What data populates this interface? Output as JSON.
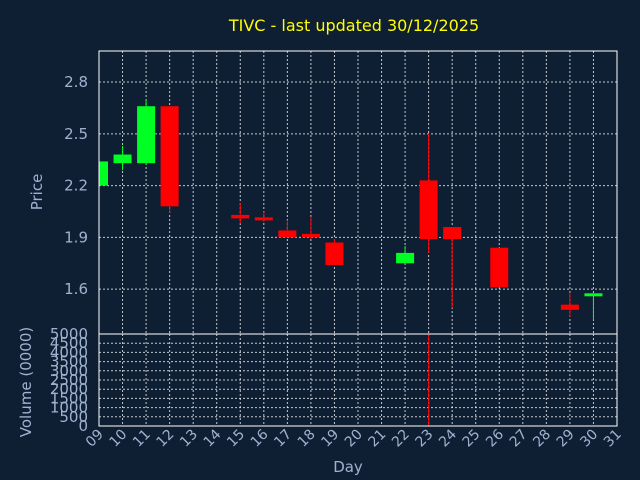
{
  "chart_data": {
    "type": "candlestick",
    "title": "TIVC - last updated 30/12/2025",
    "ylabel": "Price",
    "volume_label": "Volume (0000)",
    "xlabel": "Day",
    "ylim": [
      1.34,
      2.98
    ],
    "volume_ylim": [
      0,
      5000
    ],
    "x_ticks": [
      "09",
      "10",
      "11",
      "12",
      "13",
      "14",
      "15",
      "16",
      "17",
      "18",
      "19",
      "20",
      "21",
      "22",
      "23",
      "24",
      "25",
      "26",
      "27",
      "28",
      "29",
      "30",
      "31"
    ],
    "y_ticks": [
      "1.6",
      "1.9",
      "2.2",
      "2.5",
      "2.8"
    ],
    "volume_ticks": [
      "0",
      "500",
      "1000",
      "1500",
      "2000",
      "2500",
      "3000",
      "3500",
      "4000",
      "4500",
      "5000"
    ],
    "candles": [
      {
        "day": "09",
        "open": 2.2,
        "high": 2.34,
        "low": 2.2,
        "close": 2.34
      },
      {
        "day": "10",
        "open": 2.33,
        "high": 2.43,
        "low": 2.29,
        "close": 2.38
      },
      {
        "day": "11",
        "open": 2.33,
        "high": 2.7,
        "low": 2.32,
        "close": 2.66
      },
      {
        "day": "12",
        "open": 2.66,
        "high": 2.66,
        "low": 2.04,
        "close": 2.08
      },
      {
        "day": "15",
        "open": 2.03,
        "high": 2.1,
        "low": 1.98,
        "close": 2.01
      },
      {
        "day": "16",
        "open": 2.01,
        "high": 2.05,
        "low": 1.99,
        "close": 2.0
      },
      {
        "day": "17",
        "open": 1.94,
        "high": 2.0,
        "low": 1.9,
        "close": 1.9
      },
      {
        "day": "18",
        "open": 1.92,
        "high": 2.02,
        "low": 1.89,
        "close": 1.9
      },
      {
        "day": "19",
        "open": 1.87,
        "high": 1.89,
        "low": 1.74,
        "close": 1.74
      },
      {
        "day": "22",
        "open": 1.75,
        "high": 1.85,
        "low": 1.75,
        "close": 1.81
      },
      {
        "day": "23",
        "open": 2.23,
        "high": 2.5,
        "low": 1.81,
        "close": 1.89
      },
      {
        "day": "24",
        "open": 1.96,
        "high": 1.96,
        "low": 1.49,
        "close": 1.89
      },
      {
        "day": "26",
        "open": 1.84,
        "high": 1.84,
        "low": 1.61,
        "close": 1.61
      },
      {
        "day": "29",
        "open": 1.51,
        "high": 1.58,
        "low": 1.44,
        "close": 1.48
      },
      {
        "day": "30",
        "open": 1.56,
        "high": 1.57,
        "low": 1.42,
        "close": 1.57
      }
    ],
    "volume": [
      {
        "day": "23",
        "value": 5000
      }
    ],
    "colors": {
      "background": "#0f1f33",
      "up": "#00ff22",
      "down": "#ff0000",
      "title": "#ffff00",
      "axis_text": "#9fb3d0",
      "grid": "#ffffff"
    },
    "grid": true
  }
}
